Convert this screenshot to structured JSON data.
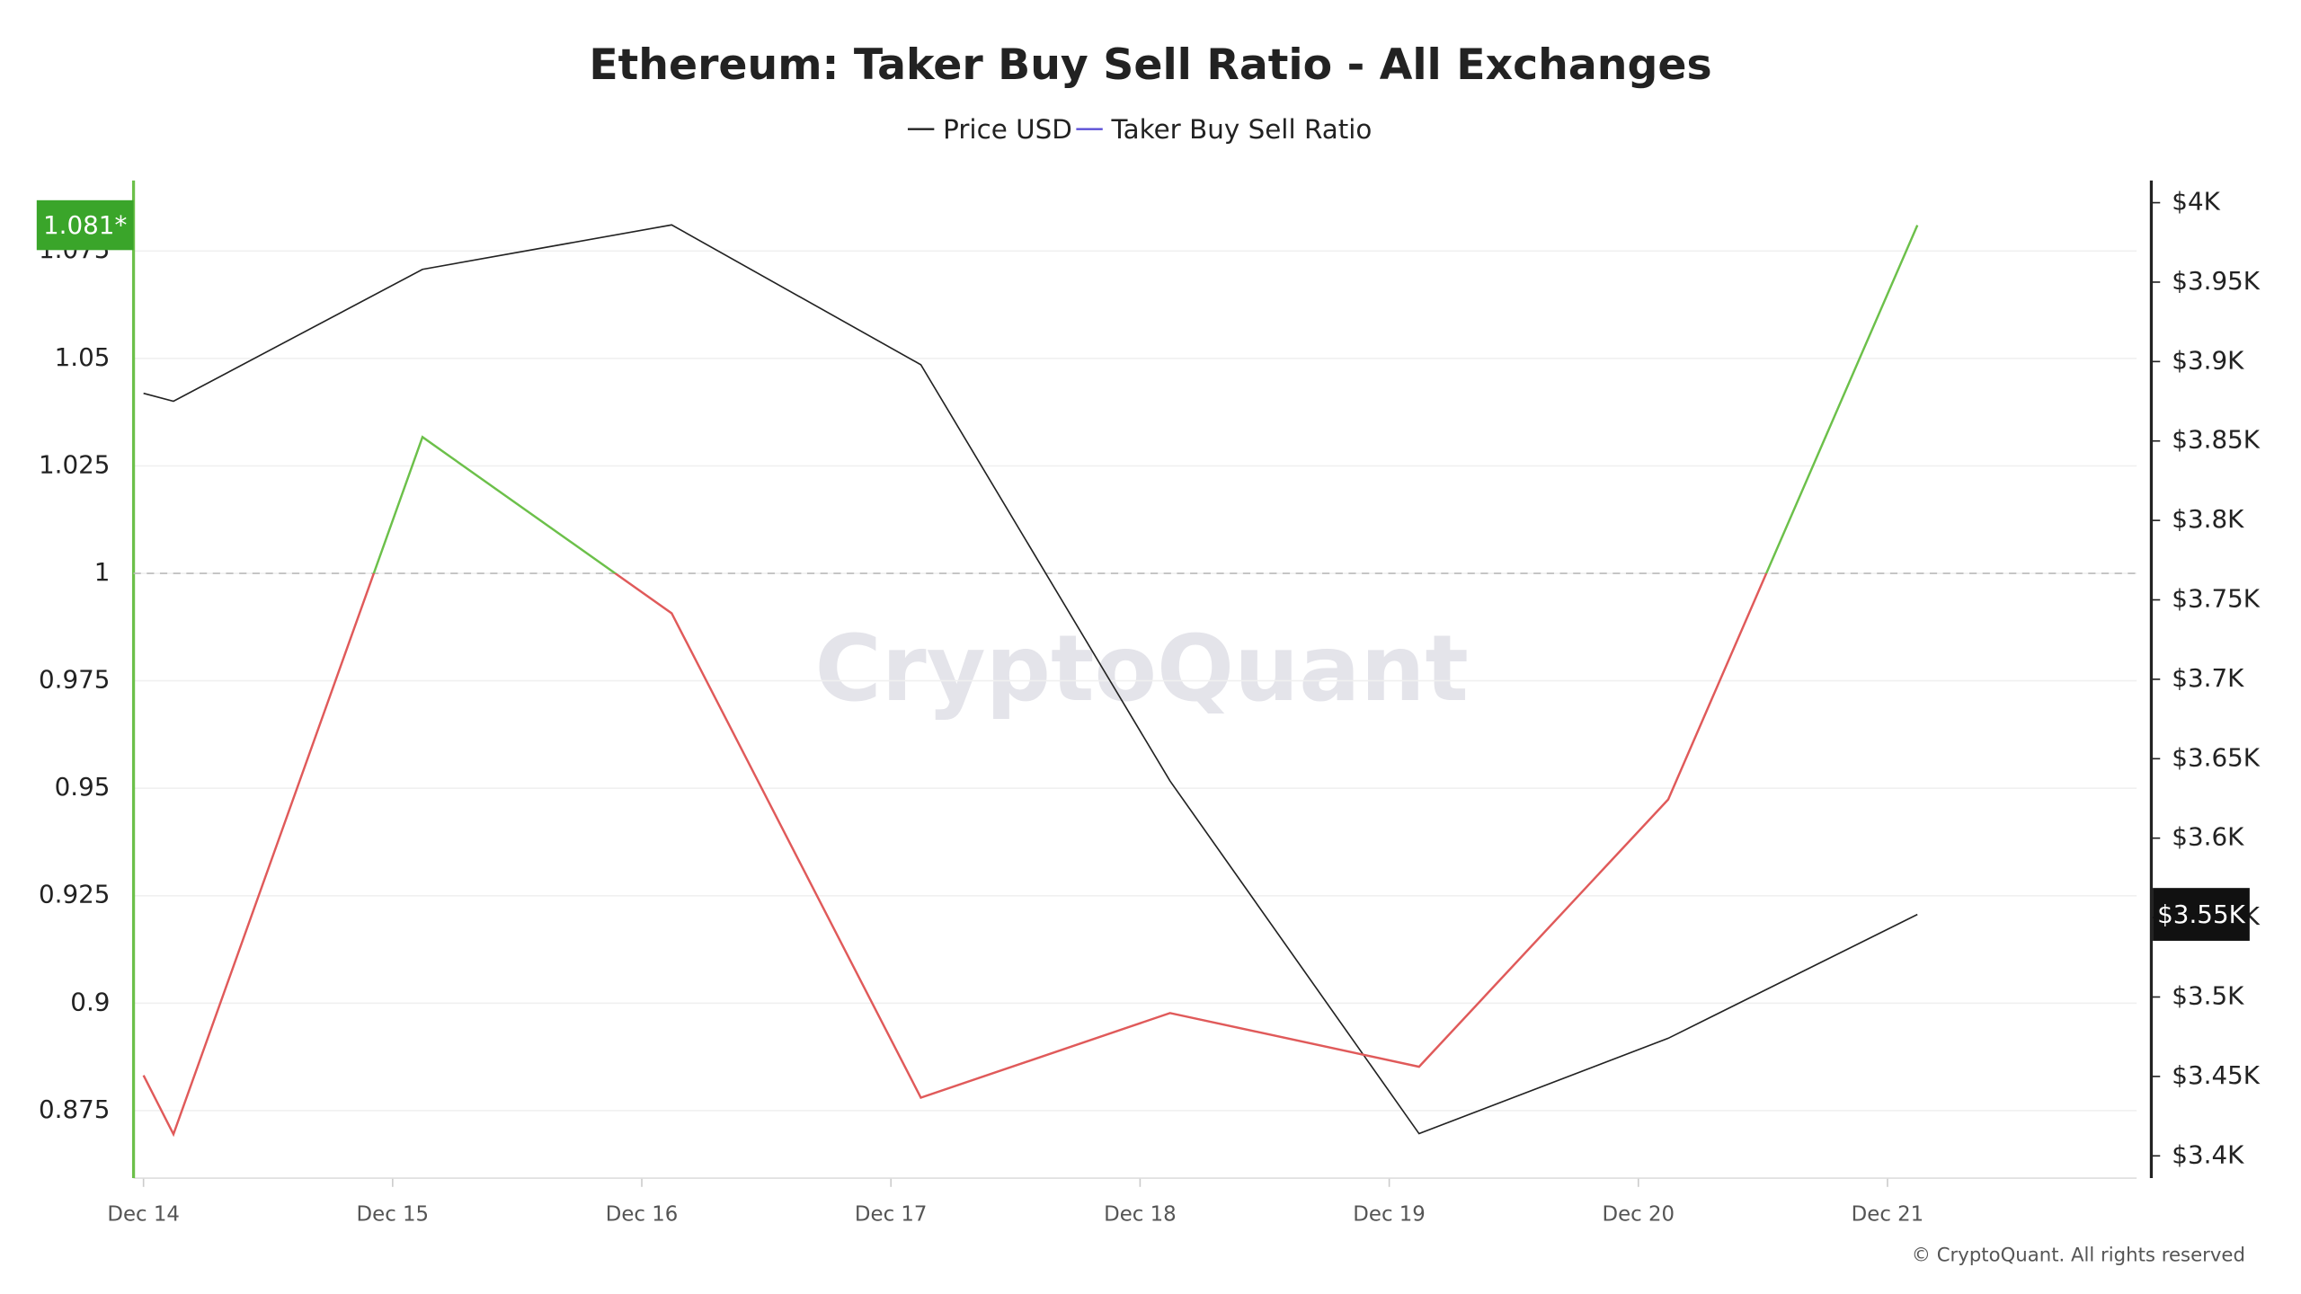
{
  "chart_data": {
    "type": "line",
    "title": "Ethereum: Taker Buy Sell Ratio - All Exchanges",
    "watermark": "CryptoQuant",
    "footer": "© CryptoQuant. All rights reserved",
    "x": [
      14,
      14.12,
      15.12,
      16.12,
      17.12,
      18.12,
      19.12,
      20.12,
      21.12
    ],
    "xlim": [
      13.96,
      22
    ],
    "xticks": [
      {
        "value": 14,
        "label": "Dec 14"
      },
      {
        "value": 15,
        "label": "Dec 15"
      },
      {
        "value": 16,
        "label": "Dec 16"
      },
      {
        "value": 17,
        "label": "Dec 17"
      },
      {
        "value": 18,
        "label": "Dec 18"
      },
      {
        "value": 19,
        "label": "Dec 19"
      },
      {
        "value": 20,
        "label": "Dec 20"
      },
      {
        "value": 21,
        "label": "Dec 21"
      }
    ],
    "ylim": [
      0.8593,
      1.0914
    ],
    "yticks": [
      0.875,
      0.9,
      0.925,
      0.95,
      0.975,
      1,
      1.025,
      1.05,
      1.075
    ],
    "y2lim": [
      3386,
      4014
    ],
    "y2ticks": [
      {
        "value": 3400,
        "label": "$3.4K"
      },
      {
        "value": 3450,
        "label": "$3.45K"
      },
      {
        "value": 3500,
        "label": "$3.5K"
      },
      {
        "value": 3550,
        "label": "$3.55K"
      },
      {
        "value": 3600,
        "label": "$3.6K"
      },
      {
        "value": 3650,
        "label": "$3.65K"
      },
      {
        "value": 3700,
        "label": "$3.7K"
      },
      {
        "value": 3750,
        "label": "$3.75K"
      },
      {
        "value": 3800,
        "label": "$3.8K"
      },
      {
        "value": 3850,
        "label": "$3.85K"
      },
      {
        "value": 3900,
        "label": "$3.9K"
      },
      {
        "value": 3950,
        "label": "$3.95K"
      },
      {
        "value": 4000,
        "label": "$4K"
      }
    ],
    "grid": true,
    "threshold": 1,
    "legend": "top",
    "series": [
      {
        "name": "Price USD",
        "color": "#222222",
        "axis": "y2",
        "values": [
          3880,
          3875,
          3958,
          3986,
          3898,
          3636,
          3414,
          3474,
          3552
        ],
        "last_label": "$3.55K"
      },
      {
        "name": "Taker Buy Sell Ratio",
        "color": "#5b4fd6",
        "above_color": "#6cc04a",
        "below_color": "#e05a5a",
        "values": [
          0.8832,
          0.8695,
          1.0317,
          0.9907,
          0.878,
          0.8977,
          0.8852,
          0.9474,
          1.081
        ],
        "last_label": "1.081*"
      }
    ]
  }
}
